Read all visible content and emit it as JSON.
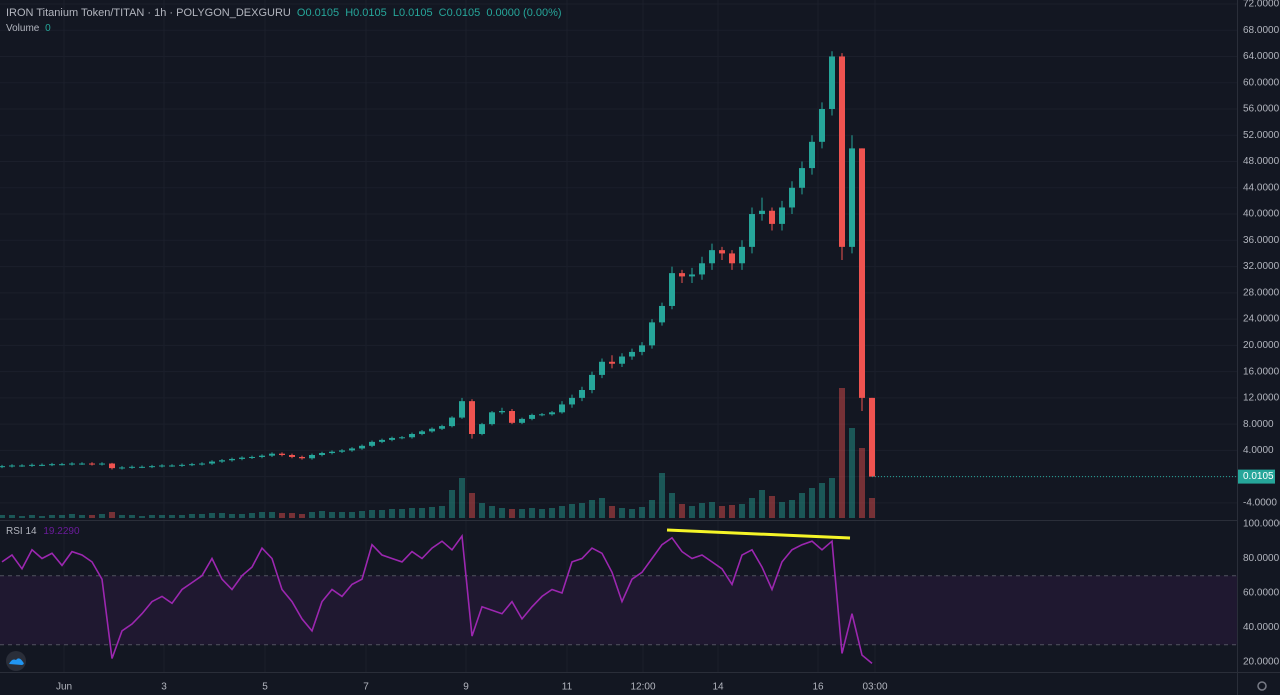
{
  "header": {
    "symbol": "IRON Titanium Token/TITAN · 1h · POLYGON_DEXGURU",
    "open": "O0.0105",
    "high": "H0.0105",
    "low": "L0.0105",
    "close": "C0.0105",
    "change": "0.0000 (0.00%)",
    "volume_label": "Volume",
    "volume_value": "0"
  },
  "chart_data": [
    {
      "type": "candlestick",
      "up_color": "#26a69a",
      "down_color": "#ef5350",
      "xlim": [
        -0.2,
        123.5
      ],
      "ylim": [
        -6.6,
        72.6
      ],
      "grid": true,
      "xticks": [
        {
          "value": 6.2,
          "label": "Jun"
        },
        {
          "value": 16.2,
          "label": "3"
        },
        {
          "value": 26.3,
          "label": "5"
        },
        {
          "value": 36.4,
          "label": "7"
        },
        {
          "value": 46.4,
          "label": "9"
        },
        {
          "value": 56.5,
          "label": "11"
        },
        {
          "value": 64.1,
          "label": "12:00"
        },
        {
          "value": 71.6,
          "label": "14"
        },
        {
          "value": 81.6,
          "label": "16"
        },
        {
          "value": 87.3,
          "label": "03:00"
        }
      ],
      "yticks": [
        {
          "value": 72,
          "label": "72.0000"
        },
        {
          "value": 68,
          "label": "68.0000"
        },
        {
          "value": 64,
          "label": "64.0000"
        },
        {
          "value": 60,
          "label": "60.0000"
        },
        {
          "value": 56,
          "label": "56.0000"
        },
        {
          "value": 52,
          "label": "52.0000"
        },
        {
          "value": 48,
          "label": "48.0000"
        },
        {
          "value": 44,
          "label": "44.0000"
        },
        {
          "value": 40,
          "label": "40.0000"
        },
        {
          "value": 36,
          "label": "36.0000"
        },
        {
          "value": 32,
          "label": "32.0000"
        },
        {
          "value": 28,
          "label": "28.0000"
        },
        {
          "value": 24,
          "label": "24.0000"
        },
        {
          "value": 20,
          "label": "20.0000"
        },
        {
          "value": 16,
          "label": "16.0000"
        },
        {
          "value": 12,
          "label": "12.0000"
        },
        {
          "value": 8,
          "label": "8.0000"
        },
        {
          "value": 4,
          "label": "4.0000"
        },
        {
          "value": 0,
          "label": "0.0000"
        },
        {
          "value": -4,
          "label": "-4.0000"
        }
      ],
      "last_price": {
        "value": 0.0105,
        "label": "0.0105"
      },
      "open": [
        1.5,
        1.6,
        1.7,
        1.7,
        1.8,
        1.8,
        1.9,
        1.9,
        2.0,
        2.0,
        1.9,
        2.0,
        1.3,
        1.4,
        1.5,
        1.5,
        1.6,
        1.7,
        1.7,
        1.8,
        1.9,
        2.0,
        2.3,
        2.5,
        2.7,
        2.9,
        3.0,
        3.2,
        3.5,
        3.3,
        3.0,
        2.8,
        3.3,
        3.6,
        3.8,
        4.0,
        4.3,
        4.7,
        5.3,
        5.6,
        5.9,
        6.0,
        6.5,
        6.9,
        7.3,
        7.7,
        9.0,
        11.5,
        6.5,
        8.0,
        9.8,
        10.0,
        8.2,
        8.8,
        9.4,
        9.5,
        9.8,
        11.0,
        12.0,
        13.2,
        15.5,
        17.5,
        17.2,
        18.3,
        19.0,
        20.0,
        23.5,
        26.0,
        31.0,
        30.5,
        30.8,
        32.5,
        34.5,
        34.0,
        32.5,
        35.0,
        40.0,
        40.5,
        38.5,
        41.0,
        44.0,
        47.0,
        51.0,
        56.0,
        64.0,
        35.0,
        50.0,
        12.0
      ],
      "high": [
        1.8,
        1.9,
        1.9,
        2.0,
        2.0,
        2.1,
        2.1,
        2.2,
        2.2,
        2.2,
        2.2,
        2.1,
        1.6,
        1.7,
        1.7,
        1.8,
        1.9,
        1.9,
        2.0,
        2.1,
        2.2,
        2.5,
        2.7,
        2.9,
        3.1,
        3.2,
        3.4,
        3.7,
        3.7,
        3.5,
        3.2,
        3.5,
        3.8,
        4.0,
        4.2,
        4.5,
        4.9,
        5.5,
        5.8,
        6.1,
        6.2,
        6.7,
        7.1,
        7.5,
        7.9,
        9.2,
        12.0,
        11.8,
        8.2,
        10.0,
        10.5,
        10.3,
        9.0,
        9.6,
        9.7,
        10.0,
        11.5,
        12.5,
        13.7,
        16.0,
        18.0,
        18.5,
        18.8,
        19.5,
        20.5,
        24.0,
        26.5,
        32.0,
        31.5,
        31.8,
        33.5,
        35.5,
        35.0,
        34.5,
        36.0,
        41.0,
        42.5,
        41.0,
        42.0,
        45.0,
        48.0,
        52.0,
        57.0,
        64.8,
        64.5,
        52.0,
        50.0,
        12.0
      ],
      "low": [
        1.3,
        1.4,
        1.5,
        1.5,
        1.6,
        1.6,
        1.7,
        1.7,
        1.8,
        1.7,
        1.7,
        1.1,
        1.1,
        1.2,
        1.3,
        1.3,
        1.4,
        1.5,
        1.5,
        1.6,
        1.7,
        1.8,
        2.1,
        2.3,
        2.5,
        2.7,
        2.8,
        3.0,
        3.1,
        2.8,
        2.6,
        2.6,
        3.1,
        3.4,
        3.6,
        3.8,
        4.1,
        4.5,
        5.1,
        5.4,
        5.7,
        5.8,
        6.3,
        6.7,
        7.1,
        7.5,
        8.8,
        5.8,
        6.3,
        7.8,
        9.5,
        8.0,
        8.0,
        8.6,
        9.2,
        9.3,
        9.6,
        10.5,
        11.5,
        12.7,
        15.0,
        16.5,
        16.7,
        17.8,
        18.5,
        19.5,
        23.0,
        25.5,
        29.5,
        29.5,
        30.0,
        31.5,
        33.0,
        31.5,
        31.5,
        34.0,
        39.0,
        37.5,
        37.5,
        40.0,
        43.0,
        46.0,
        50.0,
        55.0,
        33.0,
        34.0,
        10.0,
        0.0105
      ],
      "close": [
        1.6,
        1.7,
        1.7,
        1.8,
        1.8,
        1.9,
        1.9,
        2.0,
        2.0,
        1.9,
        2.0,
        1.3,
        1.4,
        1.5,
        1.5,
        1.6,
        1.7,
        1.7,
        1.8,
        1.9,
        2.0,
        2.3,
        2.5,
        2.7,
        2.9,
        3.0,
        3.2,
        3.5,
        3.3,
        3.0,
        2.8,
        3.3,
        3.6,
        3.8,
        4.0,
        4.3,
        4.7,
        5.3,
        5.6,
        5.9,
        6.0,
        6.5,
        6.9,
        7.3,
        7.7,
        9.0,
        11.5,
        6.5,
        8.0,
        9.8,
        10.0,
        8.2,
        8.8,
        9.4,
        9.5,
        9.8,
        11.0,
        12.0,
        13.2,
        15.5,
        17.5,
        17.2,
        18.3,
        19.0,
        20.0,
        23.5,
        26.0,
        31.0,
        30.5,
        30.8,
        32.5,
        34.5,
        34.0,
        32.5,
        35.0,
        40.0,
        40.5,
        38.5,
        41.0,
        44.0,
        47.0,
        51.0,
        56.0,
        64.0,
        35.0,
        50.0,
        12.0,
        0.0105
      ],
      "volume": [
        3,
        3,
        2,
        3,
        2,
        3,
        3,
        4,
        3,
        3,
        4,
        6,
        3,
        3,
        2,
        3,
        3,
        3,
        3,
        4,
        4,
        5,
        5,
        4,
        4,
        5,
        6,
        6,
        5,
        5,
        4,
        6,
        7,
        6,
        6,
        6,
        7,
        8,
        8,
        9,
        9,
        10,
        10,
        11,
        12,
        28,
        40,
        25,
        15,
        12,
        10,
        9,
        9,
        10,
        9,
        10,
        12,
        14,
        15,
        18,
        20,
        12,
        10,
        9,
        11,
        18,
        45,
        25,
        14,
        12,
        15,
        16,
        12,
        13,
        14,
        20,
        28,
        22,
        16,
        18,
        25,
        30,
        35,
        40,
        130,
        90,
        70,
        20
      ]
    },
    {
      "type": "line",
      "title": "RSI 14",
      "color": "#9c27b0",
      "last_value": {
        "value": 19.229,
        "label": "19.2290"
      },
      "xlim": [
        -0.2,
        123.5
      ],
      "ylim": [
        14.2,
        102.3
      ],
      "levels": [
        70,
        30
      ],
      "band_color": "#1f1830",
      "yticks": [
        {
          "value": 100,
          "label": "100.0000"
        },
        {
          "value": 80,
          "label": "80.0000"
        },
        {
          "value": 60,
          "label": "60.0000"
        },
        {
          "value": 40,
          "label": "40.0000"
        },
        {
          "value": 20,
          "label": "20.0000"
        }
      ],
      "values": [
        78,
        82,
        74,
        85,
        80,
        83,
        76,
        84,
        82,
        78,
        68,
        22,
        38,
        42,
        48,
        55,
        58,
        54,
        62,
        66,
        70,
        80,
        68,
        62,
        70,
        75,
        86,
        80,
        62,
        55,
        45,
        38,
        55,
        62,
        58,
        65,
        68,
        88,
        82,
        80,
        78,
        84,
        80,
        86,
        90,
        85,
        93,
        35,
        52,
        50,
        48,
        55,
        45,
        52,
        58,
        62,
        60,
        78,
        80,
        86,
        83,
        72,
        55,
        68,
        72,
        80,
        88,
        92,
        84,
        80,
        82,
        78,
        74,
        65,
        82,
        85,
        75,
        62,
        78,
        85,
        88,
        90,
        85,
        90,
        25,
        48,
        24,
        19.2
      ]
    }
  ]
}
